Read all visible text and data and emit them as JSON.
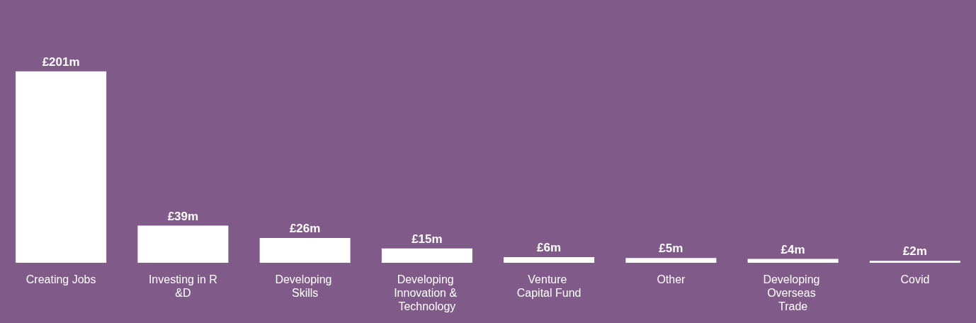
{
  "chart_data": {
    "type": "bar",
    "categories": [
      "Creating Jobs",
      "Investing in R&D",
      "Developing Skills",
      "Developing Innovation & Technology",
      "Venture Capital Fund",
      "Other",
      "Developing Overseas Trade",
      "Covid"
    ],
    "values": [
      201,
      39,
      26,
      15,
      6,
      5,
      4,
      2
    ],
    "value_labels": [
      "£201m",
      "£39m",
      "£26m",
      "£15m",
      "£6m",
      "£5m",
      "£4m",
      "£2m"
    ],
    "color": "#ffffff",
    "grid": false
  }
}
